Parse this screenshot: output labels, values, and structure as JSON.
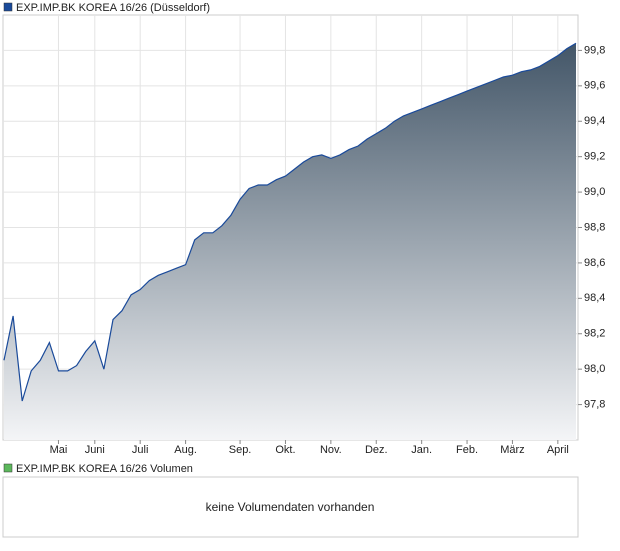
{
  "chart_data": {
    "type": "area",
    "ylim": [
      97.6,
      100.0
    ],
    "yticks": [
      {
        "value": 97.8,
        "label": "97,8"
      },
      {
        "value": 98.0,
        "label": "98,0"
      },
      {
        "value": 98.2,
        "label": "98,2"
      },
      {
        "value": 98.4,
        "label": "98,4"
      },
      {
        "value": 98.6,
        "label": "98,6"
      },
      {
        "value": 98.8,
        "label": "98,8"
      },
      {
        "value": 99.0,
        "label": "99,0"
      },
      {
        "value": 99.2,
        "label": "99,2"
      },
      {
        "value": 99.4,
        "label": "99,4"
      },
      {
        "value": 99.6,
        "label": "99,6"
      },
      {
        "value": 99.8,
        "label": "99,8"
      }
    ],
    "grid": true,
    "categories": [
      null,
      null,
      null,
      null,
      null,
      null,
      "Mai",
      null,
      null,
      null,
      "Juni",
      null,
      null,
      null,
      null,
      "Juli",
      null,
      null,
      null,
      null,
      "Aug.",
      null,
      null,
      null,
      null,
      null,
      "Sep.",
      null,
      null,
      null,
      null,
      "Okt.",
      null,
      null,
      null,
      null,
      "Nov.",
      null,
      null,
      null,
      null,
      "Dez.",
      null,
      null,
      null,
      null,
      "Jan.",
      null,
      null,
      null,
      null,
      "Feb.",
      null,
      null,
      null,
      null,
      "März",
      null,
      null,
      null,
      null,
      "April",
      null,
      null
    ],
    "series": [
      {
        "name": "EXP.IMP.BK KOREA 16/26 (Düsseldorf)",
        "color": "#1a4a9a",
        "values": [
          98.05,
          98.3,
          97.82,
          97.99,
          98.05,
          98.15,
          97.99,
          97.99,
          98.02,
          98.1,
          98.16,
          98.0,
          98.28,
          98.33,
          98.42,
          98.45,
          98.5,
          98.53,
          98.55,
          98.57,
          98.59,
          98.73,
          98.77,
          98.77,
          98.81,
          98.87,
          98.96,
          99.02,
          99.04,
          99.04,
          99.07,
          99.09,
          99.13,
          99.17,
          99.2,
          99.21,
          99.19,
          99.21,
          99.24,
          99.26,
          99.3,
          99.33,
          99.36,
          99.4,
          99.43,
          99.45,
          99.47,
          99.49,
          99.51,
          99.53,
          99.55,
          99.57,
          99.59,
          99.61,
          99.63,
          99.65,
          99.66,
          99.68,
          99.69,
          99.71,
          99.74,
          99.77,
          99.81,
          99.84
        ]
      }
    ]
  },
  "volume_panel": {
    "legend": "EXP.IMP.BK KOREA 16/26 Volumen",
    "color": "#5cb85c",
    "message": "keine Volumendaten vorhanden"
  }
}
